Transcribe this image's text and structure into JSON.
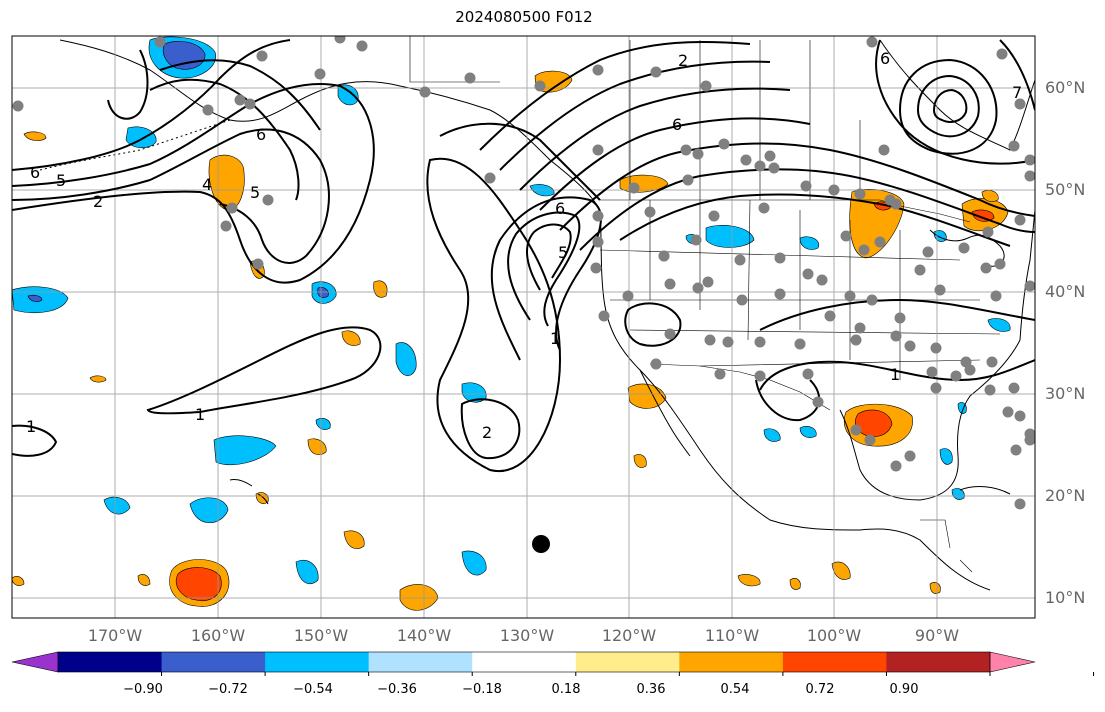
{
  "title": "2024080500 F012",
  "lon_labels": [
    "170°W",
    "160°W",
    "150°W",
    "140°W",
    "130°W",
    "120°W",
    "110°W",
    "100°W",
    "90°W"
  ],
  "lat_labels": [
    "60°N",
    "50°N",
    "40°N",
    "30°N",
    "20°N",
    "10°N"
  ],
  "contour_labels": [
    "1",
    "1",
    "1",
    "1",
    "2",
    "2",
    "2",
    "4",
    "5",
    "5",
    "5",
    "6",
    "6",
    "6",
    "6",
    "6",
    "7"
  ],
  "colorbar": {
    "ticks": [
      "−0.90",
      "−0.72",
      "−0.54",
      "−0.36",
      "−0.18",
      "0.18",
      "0.36",
      "0.54",
      "0.72",
      "0.90"
    ],
    "colors": [
      "#9a32cd",
      "#00008b",
      "#3a5fcd",
      "#00bfff",
      "#b0e2ff",
      "#ffffff",
      "#ffec8b",
      "#ffa500",
      "#ff4500",
      "#b22222",
      "#ff82ab"
    ]
  },
  "anomaly_colors": {
    "blue_dark": "#3a5fcd",
    "blue": "#00bfff",
    "blue_light": "#b0e2ff",
    "orange": "#ffa500",
    "red": "#ff4500"
  },
  "station_color": "#808080",
  "marker_color": "#000000"
}
